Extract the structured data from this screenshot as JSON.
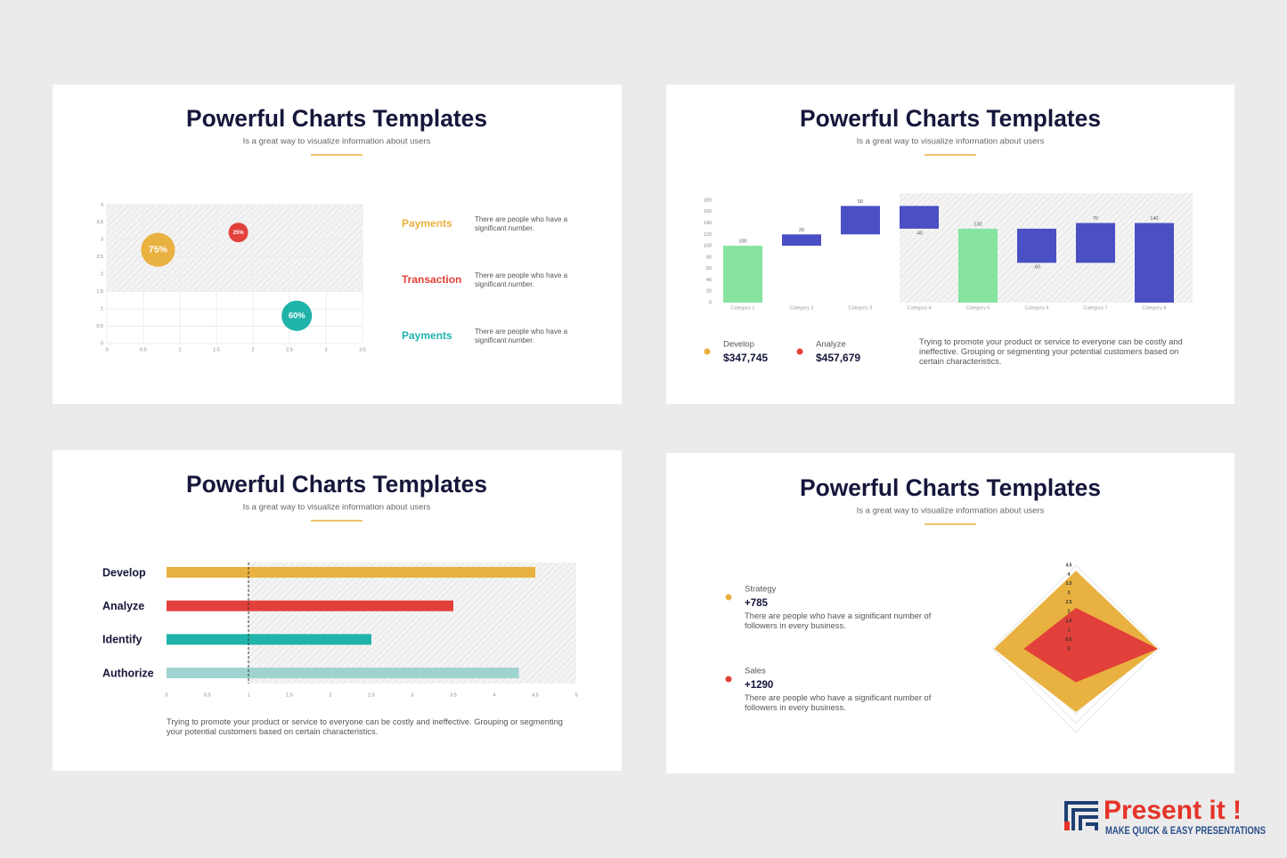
{
  "chart_data": [
    {
      "type": "bubble",
      "title": "Powerful Charts Templates",
      "subtitle": "Is a great way to visualize information about users",
      "xlim": [
        0,
        3.5
      ],
      "xticks": [
        0,
        0.5,
        1,
        1.5,
        2,
        2.5,
        3,
        3.5
      ],
      "ylim": [
        0,
        4
      ],
      "yticks": [
        0,
        0.5,
        1,
        1.5,
        2,
        2.5,
        3,
        3.5,
        4
      ],
      "grid": true,
      "series": [
        {
          "name": "Payments",
          "color": "#e9b13f",
          "x": [
            0.7
          ],
          "values": [
            2.7
          ],
          "sizes": [
            75
          ],
          "value_labels": [
            "75%"
          ],
          "description": "There are people who have a significant number."
        },
        {
          "name": "Transaction",
          "color": "#e2403a",
          "x": [
            1.8
          ],
          "values": [
            3.2
          ],
          "sizes": [
            25
          ],
          "value_labels": [
            "25%"
          ],
          "description": "There are people who have a significant number."
        },
        {
          "name": "Payments",
          "color": "#1fb3aa",
          "x": [
            2.6
          ],
          "values": [
            0.8
          ],
          "sizes": [
            60
          ],
          "value_labels": [
            "60%"
          ],
          "description": "There are people who have a significant number."
        }
      ]
    },
    {
      "type": "waterfall",
      "title": "Powerful Charts Templates",
      "subtitle": "Is a great way to visualize information about users",
      "categories": [
        "Category 1",
        "Category 2",
        "Category 3",
        "Category 4",
        "Category 5",
        "Category 6",
        "Category 7",
        "Category 8"
      ],
      "values": [
        100,
        20,
        50,
        -40,
        130,
        -60,
        70,
        140
      ],
      "colors": [
        "#86e3a0",
        "#4b4fc4",
        "#4b4fc4",
        "#4b4fc4",
        "#86e3a0",
        "#4b4fc4",
        "#4b4fc4",
        "#4b4fc4"
      ],
      "totals": [
        4,
        7
      ],
      "ylim": [
        0,
        180
      ],
      "yticks": [
        0,
        20,
        40,
        60,
        80,
        100,
        120,
        140,
        160,
        180
      ],
      "grid": false,
      "stats": [
        {
          "name": "Develop",
          "value": "$347,745",
          "color": "#e9b13f"
        },
        {
          "name": "Analyze",
          "value": "$457,679",
          "color": "#e2403a"
        }
      ],
      "note": "Trying to promote your product or service to everyone can be costly and ineffective. Grouping or segmenting your potential customers based on certain characteristics."
    },
    {
      "type": "hbar",
      "title": "Powerful Charts Templates",
      "subtitle": "Is a great way to visualize information about users",
      "categories": [
        "Develop",
        "Analyze",
        "Identify",
        "Authorize"
      ],
      "values": [
        4.5,
        3.5,
        2.5,
        4.3
      ],
      "colors": [
        "#e9b13f",
        "#e2403a",
        "#1fb3aa",
        "#9fd3d0"
      ],
      "xlim": [
        0,
        5
      ],
      "xticks": [
        0,
        0.5,
        1,
        1.5,
        2,
        2.5,
        3,
        3.5,
        4,
        4.5,
        5
      ],
      "reference_line": 1,
      "note": "Trying to promote your product or service to everyone can be costly and ineffective. Grouping or segmenting your potential customers based on certain characteristics."
    },
    {
      "type": "radar",
      "title": "Powerful Charts Templates",
      "subtitle": "Is a great way to visualize information about users",
      "categories": [
        null,
        null,
        null,
        null
      ],
      "ylim": [
        0,
        4.5
      ],
      "yticks": [
        0,
        0.5,
        1,
        1.5,
        2,
        2.5,
        3,
        3.5,
        4,
        4.5
      ],
      "series": [
        {
          "name": "Strategy",
          "color": "#e9b13f",
          "values": [
            4.2,
            4.4,
            3.4,
            4.4
          ],
          "total": "+785",
          "description": "There are people who have a significant number of followers in every business."
        },
        {
          "name": "Sales",
          "color": "#e2403a",
          "values": [
            2.2,
            4.4,
            1.8,
            2.8
          ],
          "total": "+1290",
          "description": "There are people who have a significant number of followers in every business."
        }
      ]
    }
  ],
  "brand": {
    "name": "Present it !",
    "tagline": "MAKE QUICK & EASY PRESENTATIONS"
  }
}
